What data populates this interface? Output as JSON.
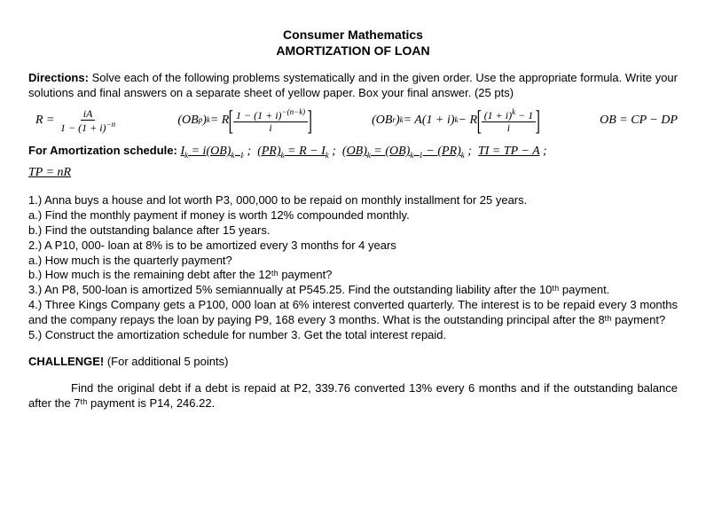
{
  "title1": "Consumer Mathematics",
  "title2": "AMORTIZATION OF LOAN",
  "directions_label": "Directions:",
  "directions_text": "  Solve each of the following problems systematically and in the given order.  Use the appropriate formula.  Write your solutions and final answers on a separate sheet of yellow paper. Box your final answer. (25 pts)",
  "schedule_label": "For Amortization schedule:",
  "problems": {
    "p1": "1.)  Anna buys a house and lot worth P3, 000,000 to be repaid on monthly installment for 25 years.",
    "p1a": "a.)  Find the monthly payment if money is worth 12% compounded monthly.",
    "p1b": "b.)  Find the outstanding balance after 15 years.",
    "p2": "2.) A P10, 000- loan at 8% is to be amortized every 3 months for 4 years",
    "p2a": "a.)  How much is the quarterly payment?",
    "p2b": "b.) How much is the remaining debt after the 12ᵗʰ payment?",
    "p3": "3.) An P8, 500-loan is amortized 5% semiannually at P545.25.  Find the outstanding liability after the 10ᵗʰ payment.",
    "p4": "4.) Three Kings Company gets a P100, 000 loan at 6% interest converted quarterly.  The interest is to be repaid every 3 months and the company repays the loan by paying P9, 168 every 3 months.  What is the outstanding principal after the 8ᵗʰ payment?",
    "p5": "5.)  Construct the amortization schedule for number 3.  Get the total interest repaid."
  },
  "challenge_label": "CHALLENGE!",
  "challenge_pts": " (For additional 5 points)",
  "challenge_body": "Find the original debt if a debt is repaid at P2, 339.76 converted 13% every 6 months and if the outstanding balance after the 7ᵗʰ payment is P14, 246.22."
}
